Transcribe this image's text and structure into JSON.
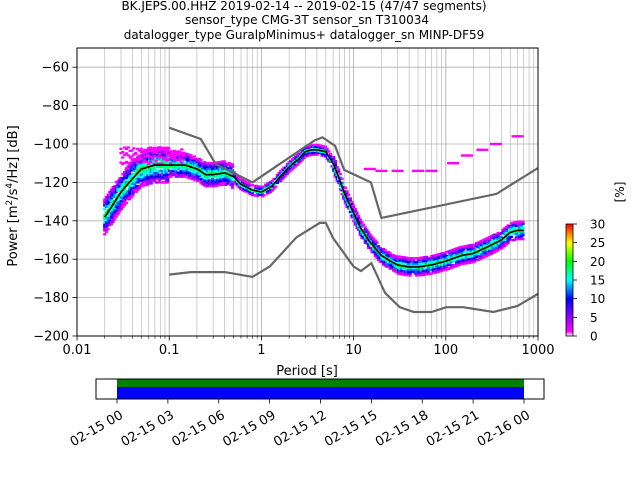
{
  "title": {
    "line1": "BK.JEPS.00.HHZ   2019-02-14 -- 2019-02-15  (47/47 segments)",
    "line2": "sensor_type CMG-3T sensor_sn T310034",
    "line3": "datalogger_type GuralpMinimus+ datalogger_sn MINP-DF59"
  },
  "chart_data": {
    "type": "heatmap",
    "xlabel": "Period [s]",
    "ylabel": "Power [m^2/s^4/Hz] [dB]",
    "xscale": "log",
    "xlim": [
      0.01,
      1000
    ],
    "ylim": [
      -200,
      -50
    ],
    "xticks": [
      {
        "value": 0.01,
        "label": "0.01"
      },
      {
        "value": 0.1,
        "label": "0.1"
      },
      {
        "value": 1,
        "label": "1"
      },
      {
        "value": 10,
        "label": "10"
      },
      {
        "value": 100,
        "label": "100"
      },
      {
        "value": 1000,
        "label": "1000"
      }
    ],
    "yticks": [
      {
        "value": -60,
        "label": "−60"
      },
      {
        "value": -80,
        "label": "−80"
      },
      {
        "value": -100,
        "label": "−100"
      },
      {
        "value": -120,
        "label": "−120"
      },
      {
        "value": -140,
        "label": "−140"
      },
      {
        "value": -160,
        "label": "−160"
      },
      {
        "value": -180,
        "label": "−180"
      },
      {
        "value": -200,
        "label": "−200"
      }
    ],
    "grid": true,
    "mean_curve": {
      "period": [
        0.02,
        0.025,
        0.03,
        0.04,
        0.05,
        0.07,
        0.1,
        0.15,
        0.2,
        0.25,
        0.3,
        0.4,
        0.5,
        0.6,
        0.8,
        1,
        1.3,
        1.6,
        2,
        2.5,
        3,
        3.5,
        4,
        5,
        6,
        7,
        8,
        10,
        12,
        15,
        20,
        25,
        30,
        40,
        50,
        70,
        100,
        150,
        200,
        300,
        400,
        500,
        600,
        700
      ],
      "power": [
        -138,
        -131,
        -125,
        -118,
        -113,
        -111,
        -111,
        -111,
        -113,
        -116,
        -116,
        -115,
        -117,
        -121,
        -124,
        -125,
        -122,
        -117,
        -112,
        -108,
        -104,
        -103,
        -103,
        -104,
        -110,
        -118,
        -126,
        -136,
        -144,
        -151,
        -158,
        -161,
        -163,
        -164,
        -164,
        -163,
        -161,
        -158,
        -157,
        -153,
        -150,
        -146,
        -145,
        -145
      ]
    },
    "noise_models": {
      "high": {
        "period": [
          0.1,
          0.22,
          0.32,
          0.8,
          3.8,
          4.6,
          6.3,
          7.9,
          15.4,
          20,
          354.8,
          1000
        ],
        "power": [
          -91.5,
          -97.4,
          -110.5,
          -120,
          -98,
          -96.5,
          -101,
          -113.5,
          -120,
          -138.5,
          -126,
          -112.5
        ]
      },
      "low": {
        "period": [
          0.1,
          0.17,
          0.4,
          0.8,
          1.24,
          2.4,
          4.3,
          5,
          6,
          10,
          12,
          15.6,
          21.9,
          31.6,
          45,
          70,
          101,
          154,
          328,
          600,
          1000
        ],
        "power": [
          -168,
          -166.7,
          -166.7,
          -169.2,
          -163.7,
          -148.6,
          -141.1,
          -141.1,
          -149,
          -163.8,
          -166.2,
          -162.1,
          -177.5,
          -185,
          -187.5,
          -187.5,
          -185,
          -185,
          -187.5,
          -184.4,
          -178
        ]
      }
    },
    "colorbar": {
      "label": "[%]",
      "min": 0,
      "max": 30,
      "ticks": [
        0,
        5,
        10,
        15,
        20,
        25,
        30
      ],
      "colors": [
        "#ffffff",
        "#ff00ff",
        "#0000ff",
        "#00ffff",
        "#00ff00",
        "#ffff00",
        "#ff0000"
      ]
    },
    "data_coverage": {
      "time_ticks": [
        "02-15 00",
        "02-15 03",
        "02-15 06",
        "02-15 09",
        "02-15 12",
        "02-15 15",
        "02-15 18",
        "02-15 21",
        "02-16 00"
      ],
      "bar_colors": [
        "#008000",
        "#0000ff"
      ]
    }
  }
}
